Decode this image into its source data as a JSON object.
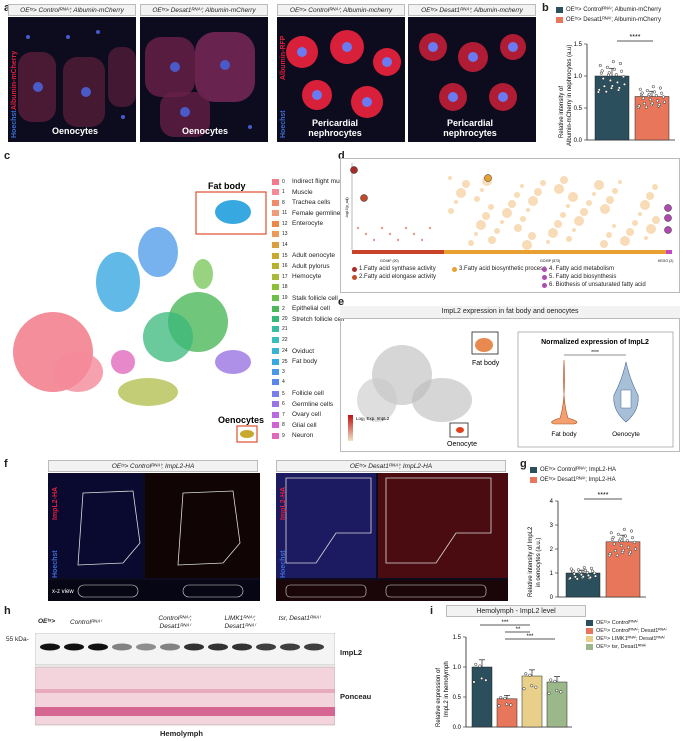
{
  "panel_labels": [
    "a",
    "b",
    "c",
    "d",
    "e",
    "f",
    "g",
    "h",
    "i"
  ],
  "panel_a": {
    "headers": [
      "OEᵗˢ> Controlᴿᴺᴬⁱ; Albumin-mCherry",
      "OEᵗˢ> Desat1ᴿᴺᴬⁱ; Albumin-mCherry",
      "OEᵗˢ> Controlᴿᴺᴬⁱ; Albumin-mcherry",
      "OEᵗˢ> Desat1ᴿᴺᴬⁱ; Albumin-mcherry"
    ],
    "captions": [
      "Oenocytes",
      "Oenocytes",
      "Pericardial nephrocytes",
      "Pericardial nephrocytes"
    ],
    "side_labels_left": [
      "Albumin-mCherry",
      "Hoechst"
    ],
    "side_labels_right": [
      "Albumin-RFP",
      "Hoechst"
    ],
    "colors": {
      "red": "#e2203a",
      "blue": "#3a6fd8"
    }
  },
  "panel_b": {
    "legend": [
      "OEᵗˢ> Controlᴿᴺᴬⁱ; Albumin-mCherry",
      "OEᵗˢ> Desat1ᴿᴺᴬⁱ; Albumin-mCherry"
    ],
    "ylabel_1": "Relative intensity of",
    "ylabel_2": "Albumin-mCherry in nephrocytes (a.u)",
    "yticks": [
      "0.0",
      "0.5",
      "1.0",
      "1.5"
    ],
    "sig": "****",
    "chart_data": {
      "type": "bar",
      "categories": [
        "Control",
        "Desat1"
      ],
      "values": [
        1.0,
        0.68
      ],
      "ylim": [
        0,
        1.5
      ],
      "colors": [
        "#2c4f5e",
        "#e8765a"
      ]
    }
  },
  "panel_c": {
    "fat_body": "Fat body",
    "oenocytes": "Oenocytes",
    "legend": [
      {
        "n": "0",
        "t": "Indirect flight muscle",
        "c": "#f27a8a"
      },
      {
        "n": "1",
        "t": "Muscle",
        "c": "#f48a9a"
      },
      {
        "n": "8",
        "t": "Trachea cells",
        "c": "#ef8b6a"
      },
      {
        "n": "11",
        "t": "Female germline cell",
        "c": "#f19a78"
      },
      {
        "n": "12",
        "t": "Enterocyte",
        "c": "#e98a4a"
      },
      {
        "n": "13",
        "t": "",
        "c": "#eb9a5a"
      },
      {
        "n": "14",
        "t": "",
        "c": "#d8a040"
      },
      {
        "n": "15",
        "t": "Adult oenocyte",
        "c": "#c9a830"
      },
      {
        "n": "16",
        "t": "Adult pylorus",
        "c": "#b8b030"
      },
      {
        "n": "17",
        "t": "Hemocyte",
        "c": "#a8b83a"
      },
      {
        "n": "18",
        "t": "",
        "c": "#8cbf3a"
      },
      {
        "n": "19",
        "t": "Stalk follicle cell",
        "c": "#6cc04a"
      },
      {
        "n": "2",
        "t": "Epithelial cell",
        "c": "#4cb85a"
      },
      {
        "n": "20",
        "t": "Stretch follicle cell",
        "c": "#3ab87a"
      },
      {
        "n": "21",
        "t": "",
        "c": "#3abca0"
      },
      {
        "n": "22",
        "t": "",
        "c": "#38bcbc"
      },
      {
        "n": "24",
        "t": "Oviduct",
        "c": "#38b4d0"
      },
      {
        "n": "25",
        "t": "Fat body",
        "c": "#38a8e0"
      },
      {
        "n": "3",
        "t": "",
        "c": "#4a98e8"
      },
      {
        "n": "4",
        "t": "",
        "c": "#5a88ea"
      },
      {
        "n": "5",
        "t": "Follicle cell",
        "c": "#7a7ee8"
      },
      {
        "n": "6",
        "t": "Germline cells",
        "c": "#9a74e4"
      },
      {
        "n": "7",
        "t": "Ovary cell",
        "c": "#b86ae0"
      },
      {
        "n": "8",
        "t": "Glial cell",
        "c": "#d064d0"
      },
      {
        "n": "9",
        "t": "Neuron",
        "c": "#e06abc"
      }
    ]
  },
  "panel_d": {
    "ylabel": "-log10(p_adj)",
    "xlabels": [
      "GO:MF (20)",
      "GO:BP (573)",
      "KEGG (2)"
    ],
    "legend": [
      "1.Fatty acid synthase activity",
      "2.Fatty acid elongase activity",
      "3.Fatty acid biosynthetic process",
      "4. Fatty acid metabolism",
      "5. Fatty acid biosynthesis",
      "6. Biothesis of unsaturated fatty acid"
    ],
    "legend_colors": [
      "#a82a2a",
      "#c04a2a",
      "#e8a030",
      "#b04ab0",
      "#b04ab0",
      "#b04ab0"
    ]
  },
  "panel_e": {
    "title": "ImpL2 expression in fat body and oenocytes",
    "fat_body": "Fat body",
    "oenocyte": "Oenocyte",
    "colorbar": "Log₂ Exp. ImpL2",
    "violin_title": "Normalized expression of ImpL2",
    "violin_x": [
      "Fat body",
      "Oenocyte"
    ],
    "sig": "****",
    "chart_data": {
      "type": "violin",
      "categories": [
        "Fat body",
        "Oenocyte"
      ],
      "medians": [
        0.3,
        2.6
      ],
      "ylim": [
        0,
        5
      ]
    }
  },
  "panel_f": {
    "headers": [
      "OEᵗˢ> Controlᴿᴺᴬⁱ; ImpL2-HA",
      "OEᵗˢ> Desat1ᴿᴺᴬⁱ; ImpL2-HA"
    ],
    "side_labels": [
      "ImpL2-HA",
      "Hoechst"
    ],
    "xz": "x-z view"
  },
  "panel_g": {
    "legend": [
      "OEᵗˢ> Controlᴿᴺᴬⁱ; ImpL2-HA",
      "OEᵗˢ> Desat1ᴿᴺᴬⁱ; ImpL2-HA"
    ],
    "ylabel_1": "Relative intensity of ImpL2",
    "ylabel_2": "in oenocytes (a.u.)",
    "yticks": [
      "0",
      "1",
      "2",
      "3",
      "4"
    ],
    "sig": "****",
    "chart_data": {
      "type": "bar",
      "categories": [
        "Control",
        "Desat1"
      ],
      "values": [
        1.0,
        2.3
      ],
      "ylim": [
        0,
        4
      ],
      "colors": [
        "#2c4f5e",
        "#e8765a"
      ]
    }
  },
  "panel_h": {
    "genotype_prefix": "OEᵗˢ>",
    "lanes": [
      "Controlᴿᴺᴬⁱ",
      "Controlᴿᴺᴬⁱ; Desat1ᴿᴺᴬⁱ",
      "LIMK1ᴿᴺᴬⁱ; Desat1ᴿᴺᴬⁱ",
      "tsr, Desat1ᴿᴺᴬⁱ"
    ],
    "marker": "55 kDa-",
    "band1": "ImpL2",
    "band2": "Ponceau",
    "xlabel": "Hemolymph"
  },
  "panel_i": {
    "title": "Hemolymph - ImpL2 level",
    "ylabel_1": "Relative expression of",
    "ylabel_2": "ImpL2 in hemolymph",
    "yticks": [
      "0.0",
      "0.5",
      "1.0",
      "1.5"
    ],
    "sigs": [
      "***",
      "**",
      "***",
      "*"
    ],
    "legend": [
      "OEᵗˢ> Controlᴿᴺᴬⁱ",
      "OEᵗˢ> Controlᴿᴺᴬⁱ; Desat1ᴿᴺᴬⁱ",
      "OEᵗˢ> LIMK1ᴿᴺᴬⁱ; Desat1ᴿᴺᴬⁱ",
      "OEᵗˢ> tsr, Desat1ᴿᴺᴬⁱ"
    ],
    "chart_data": {
      "type": "bar",
      "categories": [
        "Control",
        "Control; Desat1",
        "LIMK1; Desat1",
        "tsr, Desat1"
      ],
      "values": [
        1.0,
        0.47,
        0.85,
        0.75
      ],
      "ylim": [
        0,
        1.5
      ],
      "colors": [
        "#2c4f5e",
        "#e8765a",
        "#e8d08a",
        "#9ab88a"
      ]
    }
  }
}
